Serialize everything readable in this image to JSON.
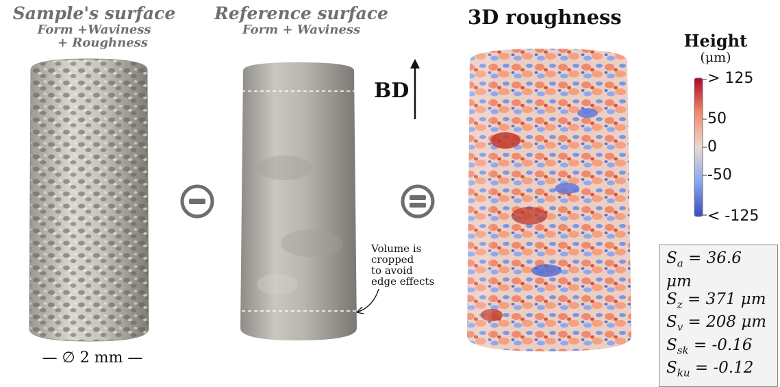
{
  "panels": {
    "sample": {
      "title": "Sample's surface",
      "subtitle_line1": "Form +Waviness",
      "subtitle_line2": "+ Roughness",
      "diameter_label": "— ∅ 2 mm —"
    },
    "reference": {
      "title": "Reference surface",
      "subtitle": "Form + Waviness",
      "note_line1": "Volume is",
      "note_line2": "cropped",
      "note_line3": "to avoid",
      "note_line4": "edge effects"
    },
    "roughness": {
      "title": "3D roughness"
    }
  },
  "operators": {
    "minus_icon": "minus-circle-icon",
    "equals_icon": "equals-circle-icon"
  },
  "build_direction": {
    "label": "BD"
  },
  "colorbar": {
    "title": "Height",
    "unit": "(μm)",
    "ticks": [
      "> 125",
      "50",
      "0",
      "-50",
      "< -125"
    ],
    "colors": {
      "high": "#b40426",
      "mid": "#ead9d0",
      "low": "#3b4cc0"
    }
  },
  "stats": {
    "sa": {
      "sym": "S",
      "sub": "a",
      "val": " = 36.6 μm"
    },
    "sz": {
      "sym": "S",
      "sub": "z",
      "val": " = 371 μm"
    },
    "sv": {
      "sym": "S",
      "sub": "v",
      "val": " = 208 μm"
    },
    "ssk": {
      "sym": "S",
      "sub": "sk",
      "val": " = -0.16"
    },
    "sku": {
      "sym": "S",
      "sub": "ku",
      "val": " = -0.12"
    }
  }
}
